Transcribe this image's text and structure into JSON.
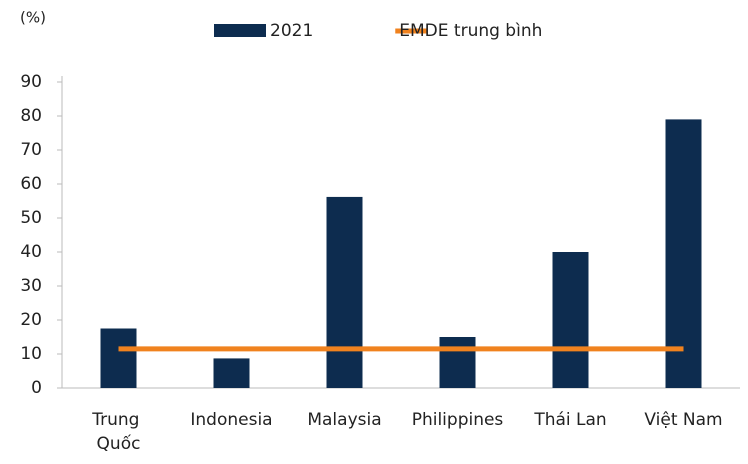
{
  "chart_data": {
    "type": "bar",
    "unit_label": "(%)",
    "categories": [
      "Trung Quốc",
      "Indonesia",
      "Malaysia",
      "Philippines",
      "Thái Lan",
      "Việt Nam"
    ],
    "series": [
      {
        "name": "2021",
        "type": "bar",
        "color": "#0d2c4f",
        "values": [
          17.5,
          8.7,
          56.2,
          15,
          40,
          79
        ]
      },
      {
        "name": "EMDE trung bình",
        "type": "line",
        "color": "#f0821e",
        "values": [
          11.5,
          11.5,
          11.5,
          11.5,
          11.5,
          11.5
        ]
      }
    ],
    "ylim": [
      0,
      90
    ],
    "yticks": [
      0,
      10,
      20,
      30,
      40,
      50,
      60,
      70,
      80,
      90
    ],
    "grid": false,
    "legend": "top"
  }
}
